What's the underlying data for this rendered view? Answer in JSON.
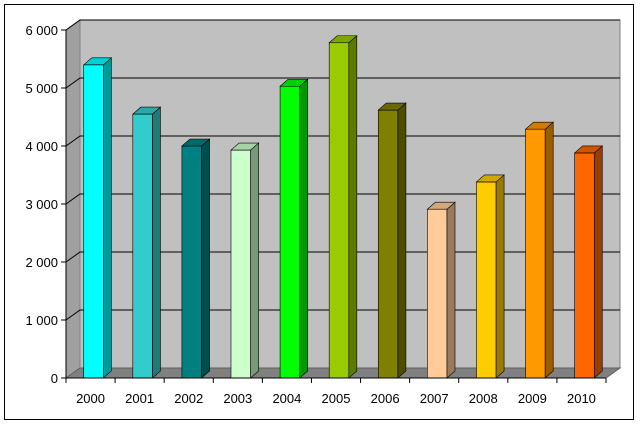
{
  "chart_data": {
    "type": "bar",
    "title": "",
    "xlabel": "",
    "ylabel": "",
    "categories": [
      "2000",
      "2001",
      "2002",
      "2003",
      "2004",
      "2005",
      "2006",
      "2007",
      "2008",
      "2009",
      "2010"
    ],
    "values": [
      5400,
      4550,
      4000,
      3930,
      5030,
      5780,
      4620,
      2910,
      3380,
      4290,
      3880
    ],
    "colors": [
      "#00ffff",
      "#33cccc",
      "#008080",
      "#ccffcc",
      "#00ff00",
      "#99cc00",
      "#808000",
      "#ffcc99",
      "#ffcc00",
      "#ff9900",
      "#ff6600"
    ],
    "ylim": [
      0,
      6000
    ],
    "yticks": [
      {
        "value": 0,
        "label": "0"
      },
      {
        "value": 1000,
        "label": "1 000"
      },
      {
        "value": 2000,
        "label": "2 000"
      },
      {
        "value": 3000,
        "label": "3 000"
      },
      {
        "value": 4000,
        "label": "4 000"
      },
      {
        "value": 5000,
        "label": "5 000"
      },
      {
        "value": 6000,
        "label": "6 000"
      }
    ],
    "grid": true,
    "three_d": true,
    "wall_color": "#c0c0c0",
    "floor_color": "#808080",
    "legend": "none"
  }
}
